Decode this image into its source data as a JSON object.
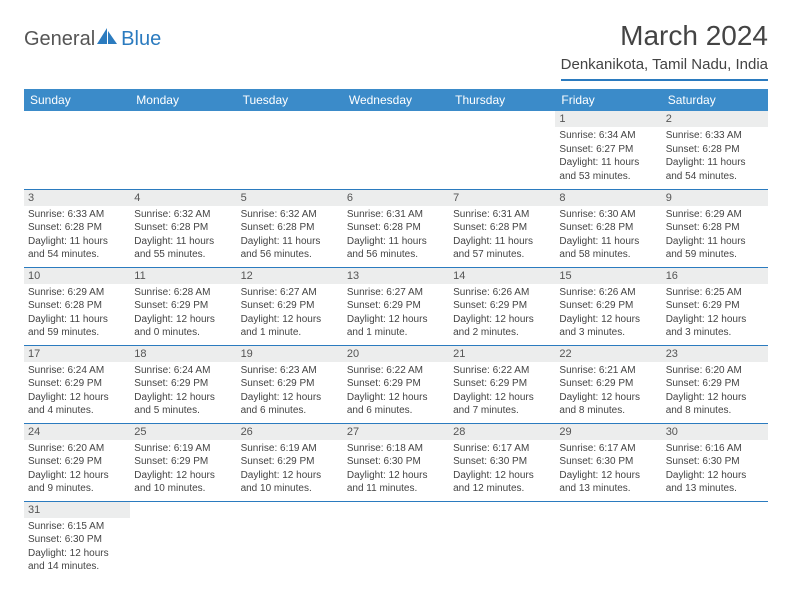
{
  "logo": {
    "text1": "General",
    "text2": "Blue"
  },
  "title": "March 2024",
  "location": "Denkanikota, Tamil Nadu, India",
  "weekdays": [
    "Sunday",
    "Monday",
    "Tuesday",
    "Wednesday",
    "Thursday",
    "Friday",
    "Saturday"
  ],
  "colors": {
    "header_bg": "#3b8bc9",
    "accent": "#2b7bbf",
    "daynum_bg": "#eceded",
    "text": "#444444"
  },
  "days": [
    {
      "n": 1,
      "sr": "6:34 AM",
      "ss": "6:27 PM",
      "dl": "11 hours and 53 minutes."
    },
    {
      "n": 2,
      "sr": "6:33 AM",
      "ss": "6:28 PM",
      "dl": "11 hours and 54 minutes."
    },
    {
      "n": 3,
      "sr": "6:33 AM",
      "ss": "6:28 PM",
      "dl": "11 hours and 54 minutes."
    },
    {
      "n": 4,
      "sr": "6:32 AM",
      "ss": "6:28 PM",
      "dl": "11 hours and 55 minutes."
    },
    {
      "n": 5,
      "sr": "6:32 AM",
      "ss": "6:28 PM",
      "dl": "11 hours and 56 minutes."
    },
    {
      "n": 6,
      "sr": "6:31 AM",
      "ss": "6:28 PM",
      "dl": "11 hours and 56 minutes."
    },
    {
      "n": 7,
      "sr": "6:31 AM",
      "ss": "6:28 PM",
      "dl": "11 hours and 57 minutes."
    },
    {
      "n": 8,
      "sr": "6:30 AM",
      "ss": "6:28 PM",
      "dl": "11 hours and 58 minutes."
    },
    {
      "n": 9,
      "sr": "6:29 AM",
      "ss": "6:28 PM",
      "dl": "11 hours and 59 minutes."
    },
    {
      "n": 10,
      "sr": "6:29 AM",
      "ss": "6:28 PM",
      "dl": "11 hours and 59 minutes."
    },
    {
      "n": 11,
      "sr": "6:28 AM",
      "ss": "6:29 PM",
      "dl": "12 hours and 0 minutes."
    },
    {
      "n": 12,
      "sr": "6:27 AM",
      "ss": "6:29 PM",
      "dl": "12 hours and 1 minute."
    },
    {
      "n": 13,
      "sr": "6:27 AM",
      "ss": "6:29 PM",
      "dl": "12 hours and 1 minute."
    },
    {
      "n": 14,
      "sr": "6:26 AM",
      "ss": "6:29 PM",
      "dl": "12 hours and 2 minutes."
    },
    {
      "n": 15,
      "sr": "6:26 AM",
      "ss": "6:29 PM",
      "dl": "12 hours and 3 minutes."
    },
    {
      "n": 16,
      "sr": "6:25 AM",
      "ss": "6:29 PM",
      "dl": "12 hours and 3 minutes."
    },
    {
      "n": 17,
      "sr": "6:24 AM",
      "ss": "6:29 PM",
      "dl": "12 hours and 4 minutes."
    },
    {
      "n": 18,
      "sr": "6:24 AM",
      "ss": "6:29 PM",
      "dl": "12 hours and 5 minutes."
    },
    {
      "n": 19,
      "sr": "6:23 AM",
      "ss": "6:29 PM",
      "dl": "12 hours and 6 minutes."
    },
    {
      "n": 20,
      "sr": "6:22 AM",
      "ss": "6:29 PM",
      "dl": "12 hours and 6 minutes."
    },
    {
      "n": 21,
      "sr": "6:22 AM",
      "ss": "6:29 PM",
      "dl": "12 hours and 7 minutes."
    },
    {
      "n": 22,
      "sr": "6:21 AM",
      "ss": "6:29 PM",
      "dl": "12 hours and 8 minutes."
    },
    {
      "n": 23,
      "sr": "6:20 AM",
      "ss": "6:29 PM",
      "dl": "12 hours and 8 minutes."
    },
    {
      "n": 24,
      "sr": "6:20 AM",
      "ss": "6:29 PM",
      "dl": "12 hours and 9 minutes."
    },
    {
      "n": 25,
      "sr": "6:19 AM",
      "ss": "6:29 PM",
      "dl": "12 hours and 10 minutes."
    },
    {
      "n": 26,
      "sr": "6:19 AM",
      "ss": "6:29 PM",
      "dl": "12 hours and 10 minutes."
    },
    {
      "n": 27,
      "sr": "6:18 AM",
      "ss": "6:30 PM",
      "dl": "12 hours and 11 minutes."
    },
    {
      "n": 28,
      "sr": "6:17 AM",
      "ss": "6:30 PM",
      "dl": "12 hours and 12 minutes."
    },
    {
      "n": 29,
      "sr": "6:17 AM",
      "ss": "6:30 PM",
      "dl": "12 hours and 13 minutes."
    },
    {
      "n": 30,
      "sr": "6:16 AM",
      "ss": "6:30 PM",
      "dl": "12 hours and 13 minutes."
    },
    {
      "n": 31,
      "sr": "6:15 AM",
      "ss": "6:30 PM",
      "dl": "12 hours and 14 minutes."
    }
  ],
  "first_weekday_index": 5,
  "labels": {
    "sunrise": "Sunrise:",
    "sunset": "Sunset:",
    "daylight": "Daylight:"
  }
}
